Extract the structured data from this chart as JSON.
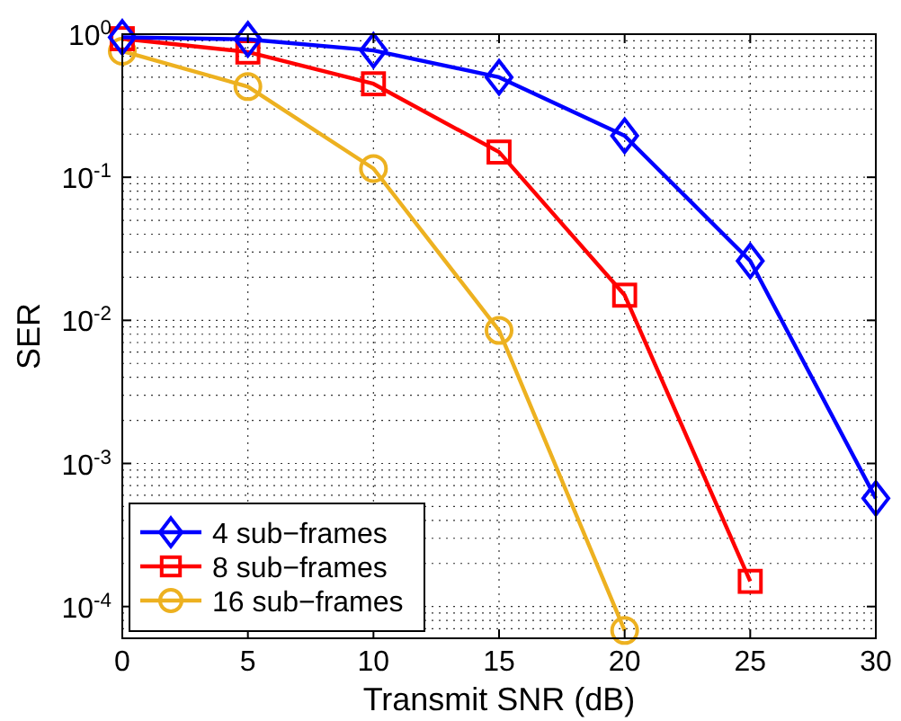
{
  "chart_data": {
    "type": "line",
    "xlabel": "Transmit SNR (dB)",
    "ylabel": "SER",
    "x": [
      0,
      5,
      10,
      15,
      20,
      25,
      30
    ],
    "series": [
      {
        "name": "4 sub−frames",
        "color": "#0000ff",
        "marker": "diamond",
        "values": [
          0.95,
          0.92,
          0.77,
          0.5,
          0.195,
          0.026,
          0.00057
        ]
      },
      {
        "name": "8 sub−frames",
        "color": "#ff0000",
        "marker": "square",
        "values": [
          0.93,
          0.75,
          0.45,
          0.15,
          0.015,
          0.00015,
          null
        ]
      },
      {
        "name": "16 sub−frames",
        "color": "#edb120",
        "marker": "circle",
        "values": [
          0.76,
          0.43,
          0.115,
          0.0085,
          6.8e-05,
          null,
          null
        ]
      }
    ],
    "log": "y",
    "grid": true,
    "legend": "bottom left",
    "line_style": "solid",
    "xlim": [
      0,
      30
    ],
    "xticks": [
      0,
      5,
      10,
      15,
      20,
      25,
      30
    ],
    "ylim": [
      6e-05,
      1
    ],
    "yticks": [
      {
        "value": 0.0001,
        "label": "10$^{-4}$"
      },
      {
        "value": 0.001,
        "label": "10$^{-3}$"
      },
      {
        "value": 0.01,
        "label": "10$^{-2}$"
      },
      {
        "value": 0.1,
        "label": "10$^{-1}$"
      },
      {
        "value": 1,
        "label": "10$^{0}$"
      }
    ]
  }
}
